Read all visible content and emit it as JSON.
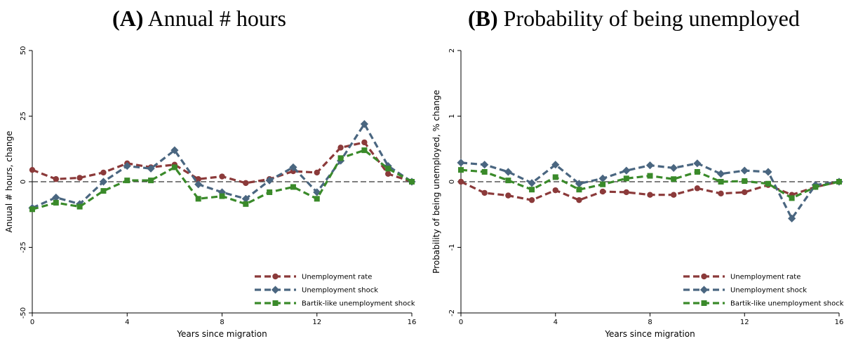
{
  "colors": {
    "unemployment_rate": "#8b3a3a",
    "unemployment_shock": "#4a6680",
    "bartik_shock": "#3a8a2a",
    "zero_line": "#333333"
  },
  "chart_data": [
    {
      "type": "line",
      "panel_label": "(A)",
      "title": "Annual # hours",
      "xlabel": "Years since migration",
      "ylabel": "Anuual # hours, change",
      "xlim": [
        0,
        16
      ],
      "ylim": [
        -50,
        50
      ],
      "xticks": [
        0,
        4,
        8,
        12,
        16
      ],
      "yticks": [
        -50,
        -25,
        0,
        25,
        50
      ],
      "grid": false,
      "reference_line": 0,
      "legend_position": "bottom-right",
      "x": [
        0,
        1,
        2,
        3,
        4,
        5,
        6,
        7,
        8,
        9,
        10,
        11,
        12,
        13,
        14,
        15,
        16
      ],
      "series": [
        {
          "name": "Unemployment rate",
          "marker": "circle",
          "color_key": "unemployment_rate",
          "values": [
            4.5,
            1,
            1.5,
            3.5,
            7,
            5.5,
            6.5,
            1,
            2,
            -0.5,
            1,
            4,
            3.5,
            13,
            15,
            3,
            0
          ]
        },
        {
          "name": "Unemployment shock",
          "marker": "diamond",
          "color_key": "unemployment_shock",
          "values": [
            -10,
            -6,
            -8.5,
            0,
            6,
            5,
            12,
            -1,
            -4,
            -6.5,
            0.5,
            5.5,
            -4,
            8,
            22,
            6,
            0
          ]
        },
        {
          "name": "Bartik-like unemployment shock",
          "marker": "square",
          "color_key": "bartik_shock",
          "values": [
            -10.5,
            -8,
            -9.5,
            -3.5,
            0.5,
            0.5,
            5.5,
            -6.5,
            -5.5,
            -8.5,
            -4,
            -2,
            -6.5,
            9,
            12,
            5,
            0
          ]
        }
      ]
    },
    {
      "type": "line",
      "panel_label": "(B)",
      "title": "Probability of being unemployed",
      "xlabel": "Years since migration",
      "ylabel": "Probability of being unemployed, % change",
      "xlim": [
        0,
        16
      ],
      "ylim": [
        -2,
        2
      ],
      "xticks": [
        0,
        4,
        8,
        12,
        16
      ],
      "yticks": [
        -2,
        -1,
        0,
        1,
        2
      ],
      "grid": false,
      "reference_line": 0,
      "legend_position": "bottom-right",
      "x": [
        0,
        1,
        2,
        3,
        4,
        5,
        6,
        7,
        8,
        9,
        10,
        11,
        12,
        13,
        14,
        15,
        16
      ],
      "series": [
        {
          "name": "Unemployment rate",
          "marker": "circle",
          "color_key": "unemployment_rate",
          "values": [
            0,
            -0.17,
            -0.21,
            -0.28,
            -0.13,
            -0.28,
            -0.15,
            -0.16,
            -0.2,
            -0.2,
            -0.1,
            -0.18,
            -0.16,
            -0.05,
            -0.2,
            -0.08,
            0
          ]
        },
        {
          "name": "Unemployment shock",
          "marker": "diamond",
          "color_key": "unemployment_shock",
          "values": [
            0.29,
            0.26,
            0.15,
            -0.02,
            0.26,
            -0.03,
            0.05,
            0.17,
            0.25,
            0.21,
            0.28,
            0.12,
            0.17,
            0.15,
            -0.56,
            -0.05,
            0
          ]
        },
        {
          "name": "Bartik-like unemployment shock",
          "marker": "square",
          "color_key": "bartik_shock",
          "values": [
            0.18,
            0.15,
            0.02,
            -0.12,
            0.07,
            -0.12,
            -0.04,
            0.05,
            0.09,
            0.04,
            0.15,
            0,
            0.01,
            -0.03,
            -0.25,
            -0.08,
            0
          ]
        }
      ]
    }
  ]
}
